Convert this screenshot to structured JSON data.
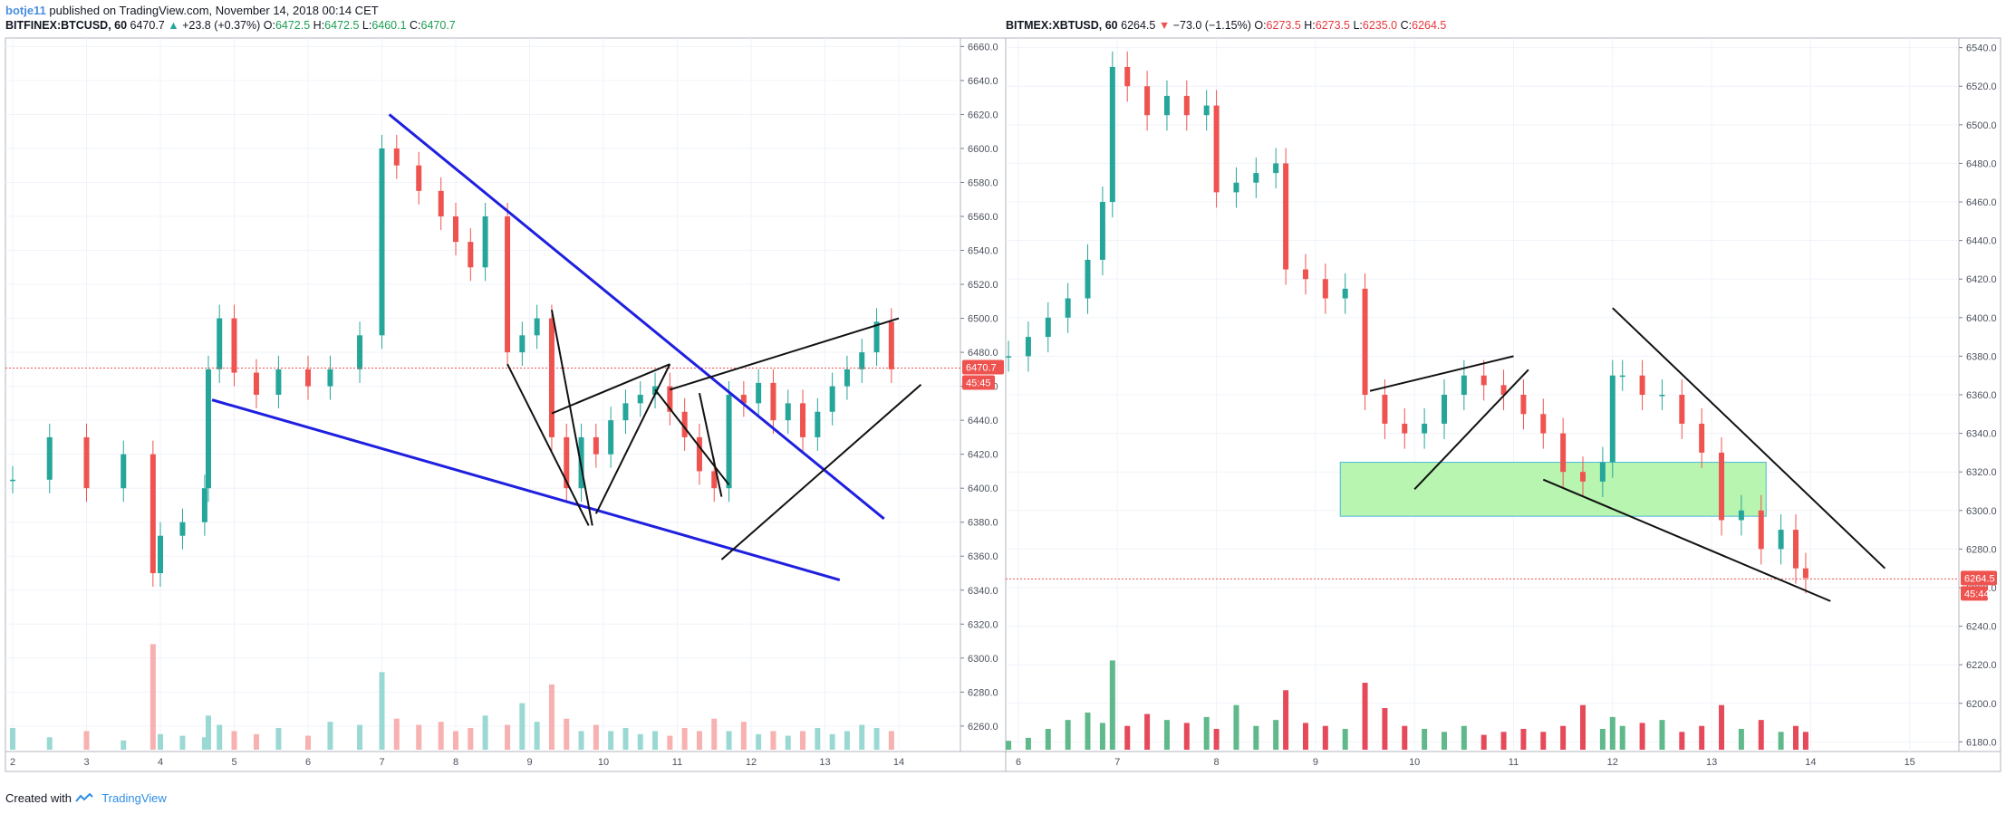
{
  "header": {
    "user": "botje11",
    "published": "published on TradingView.com, November 14, 2018 00:14 CET"
  },
  "footer": {
    "created_with": "Created with",
    "brand": "TradingView"
  },
  "colors": {
    "up": "#26a69a",
    "down": "#ef5350",
    "trend_blue": "#1f1fe0",
    "zone_fill": "#b7f5b0"
  },
  "chart_data": [
    {
      "type": "line",
      "symbol": "BITFINEX:BTCUSD, 60",
      "last": "6470.7",
      "change": "+23.8 (+0.37%)",
      "ohlc": {
        "O": "6472.5",
        "H": "6472.5",
        "L": "6460.1",
        "C": "6470.7"
      },
      "price_label": "6470.7",
      "countdown": "45:45",
      "ylim": [
        6245,
        6665
      ],
      "yticks": [
        "6660.0",
        "6640.0",
        "6620.0",
        "6600.0",
        "6580.0",
        "6560.0",
        "6540.0",
        "6520.0",
        "6500.0",
        "6480.0",
        "6460.0",
        "6440.0",
        "6420.0",
        "6400.0",
        "6380.0",
        "6360.0",
        "6340.0",
        "6320.0",
        "6300.0",
        "6280.0",
        "6260.0"
      ],
      "xticks": [
        "2",
        "3",
        "4",
        "5",
        "6",
        "7",
        "8",
        "9",
        "10",
        "11",
        "12",
        "13",
        "14"
      ],
      "x": [
        2.0,
        2.5,
        3.0,
        3.5,
        3.9,
        4.0,
        4.3,
        4.6,
        4.65,
        4.8,
        5.0,
        5.3,
        5.6,
        6.0,
        6.3,
        6.7,
        7.0,
        7.2,
        7.5,
        7.8,
        8.0,
        8.2,
        8.4,
        8.7,
        8.9,
        9.1,
        9.3,
        9.5,
        9.7,
        9.9,
        10.1,
        10.3,
        10.5,
        10.7,
        10.9,
        11.1,
        11.3,
        11.5,
        11.7,
        11.9,
        12.1,
        12.3,
        12.5,
        12.7,
        12.9,
        13.1,
        13.3,
        13.5,
        13.7,
        13.9
      ],
      "series": [
        {
          "values": [
            6405,
            6430,
            6400,
            6420,
            6350,
            6372,
            6380,
            6400,
            6470,
            6500,
            6468,
            6455,
            6470,
            6460,
            6470,
            6490,
            6600,
            6590,
            6575,
            6560,
            6545,
            6530,
            6560,
            6480,
            6490,
            6500,
            6430,
            6400,
            6430,
            6420,
            6440,
            6450,
            6455,
            6460,
            6445,
            6430,
            6410,
            6400,
            6455,
            6450,
            6462,
            6440,
            6450,
            6430,
            6445,
            6460,
            6470,
            6480,
            6498,
            6470
          ]
        }
      ],
      "volume_values": [
        14,
        8,
        12,
        6,
        68,
        10,
        9,
        8,
        22,
        16,
        12,
        10,
        14,
        9,
        18,
        16,
        50,
        20,
        16,
        18,
        12,
        14,
        22,
        16,
        30,
        18,
        42,
        20,
        12,
        16,
        12,
        14,
        10,
        12,
        9,
        14,
        12,
        20,
        12,
        18,
        10,
        12,
        9,
        12,
        14,
        10,
        12,
        16,
        14,
        12
      ],
      "trendlines": [
        {
          "color": "blue",
          "from": [
            7.1,
            6620
          ],
          "to": [
            13.8,
            6382
          ]
        },
        {
          "color": "blue",
          "from": [
            4.7,
            6452
          ],
          "to": [
            13.2,
            6346
          ]
        },
        {
          "color": "black",
          "from": [
            8.7,
            6473
          ],
          "to": [
            9.8,
            6378
          ]
        },
        {
          "color": "black",
          "from": [
            9.3,
            6505
          ],
          "to": [
            9.85,
            6378
          ]
        },
        {
          "color": "black",
          "from": [
            9.9,
            6385
          ],
          "to": [
            10.9,
            6473
          ]
        },
        {
          "color": "black",
          "from": [
            9.3,
            6444
          ],
          "to": [
            10.9,
            6473
          ]
        },
        {
          "color": "black",
          "from": [
            10.7,
            6458
          ],
          "to": [
            11.7,
            6402
          ]
        },
        {
          "color": "black",
          "from": [
            11.3,
            6456
          ],
          "to": [
            11.6,
            6395
          ]
        },
        {
          "color": "black",
          "from": [
            10.9,
            6458
          ],
          "to": [
            14.0,
            6500
          ]
        },
        {
          "color": "black",
          "from": [
            11.6,
            6358
          ],
          "to": [
            14.3,
            6461
          ]
        }
      ]
    },
    {
      "type": "line",
      "symbol": "BITMEX:XBTUSD, 60",
      "last": "6264.5",
      "change": "−73.0 (−1.15%)",
      "ohlc": {
        "O": "6273.5",
        "H": "6273.5",
        "L": "6235.0",
        "C": "6264.5"
      },
      "price_label": "6264.5",
      "countdown": "45:44",
      "ylim": [
        6175,
        6545
      ],
      "yticks": [
        "6540.0",
        "6520.0",
        "6500.0",
        "6480.0",
        "6460.0",
        "6440.0",
        "6420.0",
        "6400.0",
        "6380.0",
        "6360.0",
        "6340.0",
        "6320.0",
        "6300.0",
        "6280.0",
        "6260.0",
        "6240.0",
        "6220.0",
        "6200.0",
        "6180.0"
      ],
      "xticks": [
        "6",
        "7",
        "8",
        "9",
        "10",
        "11",
        "12",
        "13",
        "14",
        "15"
      ],
      "x": [
        5.9,
        6.1,
        6.3,
        6.5,
        6.7,
        6.85,
        6.95,
        7.1,
        7.3,
        7.5,
        7.7,
        7.9,
        8.0,
        8.2,
        8.4,
        8.6,
        8.7,
        8.9,
        9.1,
        9.3,
        9.5,
        9.7,
        9.9,
        10.1,
        10.3,
        10.5,
        10.7,
        10.9,
        11.1,
        11.3,
        11.5,
        11.7,
        11.9,
        12.0,
        12.1,
        12.3,
        12.5,
        12.7,
        12.9,
        13.1,
        13.3,
        13.5,
        13.7,
        13.85,
        13.95
      ],
      "series": [
        {
          "values": [
            6380,
            6390,
            6400,
            6410,
            6430,
            6460,
            6530,
            6520,
            6505,
            6515,
            6505,
            6510,
            6465,
            6470,
            6475,
            6480,
            6425,
            6420,
            6410,
            6415,
            6360,
            6345,
            6340,
            6345,
            6360,
            6370,
            6365,
            6360,
            6350,
            6340,
            6320,
            6315,
            6325,
            6370,
            6370,
            6360,
            6360,
            6345,
            6330,
            6295,
            6300,
            6280,
            6290,
            6270,
            6265
          ]
        }
      ],
      "volume_values": [
        6,
        8,
        14,
        20,
        25,
        18,
        60,
        16,
        24,
        20,
        18,
        22,
        14,
        30,
        16,
        20,
        40,
        18,
        16,
        14,
        45,
        28,
        16,
        14,
        12,
        16,
        10,
        12,
        14,
        12,
        16,
        30,
        14,
        22,
        16,
        18,
        20,
        12,
        16,
        30,
        14,
        20,
        12,
        16,
        12
      ],
      "trendlines": [
        {
          "color": "black",
          "from": [
            9.55,
            6362
          ],
          "to": [
            11.0,
            6380
          ]
        },
        {
          "color": "black",
          "from": [
            10.0,
            6311
          ],
          "to": [
            11.15,
            6373
          ]
        },
        {
          "color": "black",
          "from": [
            11.3,
            6316
          ],
          "to": [
            14.2,
            6253
          ]
        },
        {
          "color": "black",
          "from": [
            12.0,
            6405
          ],
          "to": [
            14.75,
            6270
          ]
        }
      ],
      "zone": {
        "x": [
          9.25,
          13.55
        ],
        "y": [
          6297,
          6325
        ]
      }
    }
  ]
}
